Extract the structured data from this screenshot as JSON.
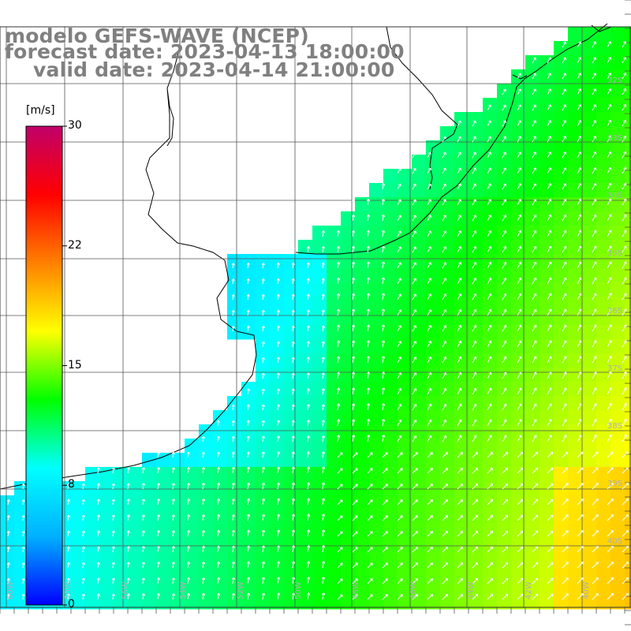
{
  "title": {
    "model": "modelo GEFS-WAVE (NCEP)",
    "forecast": "forecast date: 2023-04-13 18:00:00",
    "valid": "valid date: 2023-04-14 21:00:00"
  },
  "colorbar": {
    "unit": "[m/s]",
    "min": 0,
    "max": 30,
    "ticks": [
      "30",
      "22",
      "15",
      "8",
      "0"
    ],
    "tick_values": [
      30,
      22.5,
      15,
      7.5,
      0
    ],
    "colors": [
      "#0000ff",
      "#00b0ff",
      "#00ffff",
      "#00ff00",
      "#ffff00",
      "#ff8000",
      "#ff0000",
      "#c0006a"
    ]
  },
  "map": {
    "land_color": "#ffffff",
    "coast_color": "#000000",
    "grid_color": "#555555",
    "arrow_color": "#ffffff",
    "lon_labels": [
      "60W",
      "58W",
      "56W",
      "54W",
      "52W",
      "50W",
      "48W",
      "46W",
      "44W",
      "42W",
      "40W"
    ],
    "lat_labels": [
      "32S",
      "33S",
      "34S",
      "35S",
      "36S",
      "37S",
      "38S",
      "39S",
      "40S"
    ]
  }
}
